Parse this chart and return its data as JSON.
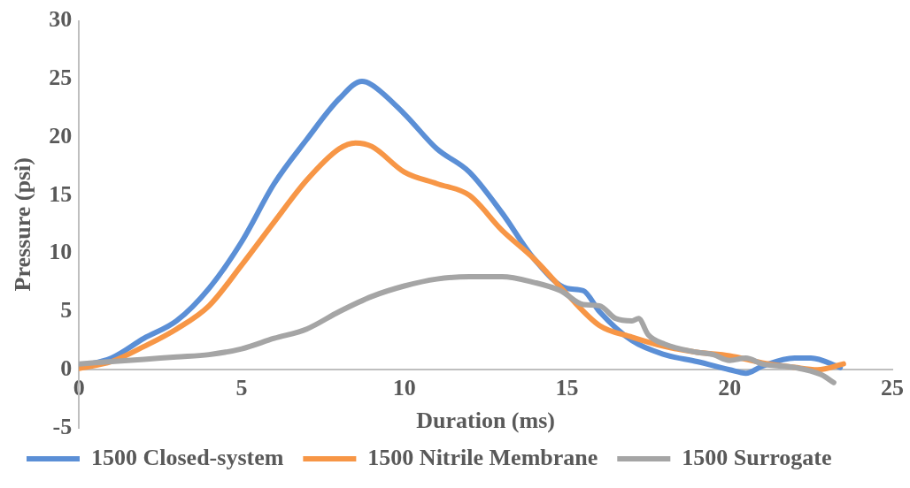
{
  "chart_data": {
    "type": "line",
    "xlabel": "Duration (ms)",
    "ylabel": "Pressure (psi)",
    "xlim": [
      0,
      25
    ],
    "xticks": [
      0,
      5,
      10,
      15,
      20,
      25
    ],
    "ylim": [
      -5,
      30
    ],
    "yticks": [
      -5,
      0,
      5,
      10,
      15,
      20,
      25,
      30
    ],
    "grid": false,
    "legend": "bottom",
    "marker": "none",
    "line_style": "solid",
    "series": [
      {
        "name": "1500 Closed-system",
        "color": "#5b8fd6",
        "x": [
          0,
          1,
          2,
          3,
          4,
          5,
          6,
          7,
          8,
          8.7,
          9,
          10,
          11,
          12,
          13,
          14,
          15,
          15.5,
          16,
          17,
          18,
          19,
          20,
          20.5,
          21,
          22,
          22.5,
          23.4
        ],
        "values": [
          0.3,
          1,
          2.7,
          4.2,
          7,
          11,
          16,
          19.8,
          23.3,
          24.8,
          24.5,
          22,
          19,
          17,
          13.5,
          9.5,
          7,
          6.8,
          5,
          2.5,
          1.3,
          0.7,
          0,
          -0.3,
          0.3,
          1,
          1,
          0.2
        ]
      },
      {
        "name": "1500 Nitrile Membrane",
        "color": "#f79646",
        "x": [
          0,
          1,
          2,
          3,
          4,
          5,
          6,
          7,
          8,
          8.5,
          9,
          10,
          11,
          12,
          13,
          14,
          15,
          16,
          17,
          18,
          19,
          20,
          21,
          22,
          22.7,
          23.5
        ],
        "values": [
          0.1,
          0.7,
          2,
          3.5,
          5.5,
          9,
          12.7,
          16.3,
          19,
          19.5,
          19.2,
          17,
          16,
          15,
          12,
          9.5,
          6.5,
          3.8,
          2.8,
          2,
          1.5,
          1.2,
          0.6,
          0.2,
          0,
          0.5
        ]
      },
      {
        "name": "1500 Surrogate",
        "color": "#a5a5a5",
        "x": [
          0,
          1,
          2,
          3,
          4,
          5,
          6,
          7,
          8,
          9,
          10,
          11,
          12,
          13,
          14,
          14.8,
          15.5,
          16,
          16.5,
          17,
          17.2,
          17.5,
          18,
          19,
          19.5,
          20,
          20.5,
          21,
          22,
          22.8,
          23.2
        ],
        "values": [
          0.5,
          0.7,
          0.9,
          1.1,
          1.3,
          1.8,
          2.7,
          3.5,
          5,
          6.3,
          7.2,
          7.8,
          8,
          8,
          7.5,
          6.8,
          5.6,
          5.5,
          4.4,
          4.2,
          4.4,
          3,
          2.2,
          1.5,
          1.3,
          0.8,
          1,
          0.5,
          0.2,
          -0.4,
          -1.1
        ]
      }
    ]
  }
}
